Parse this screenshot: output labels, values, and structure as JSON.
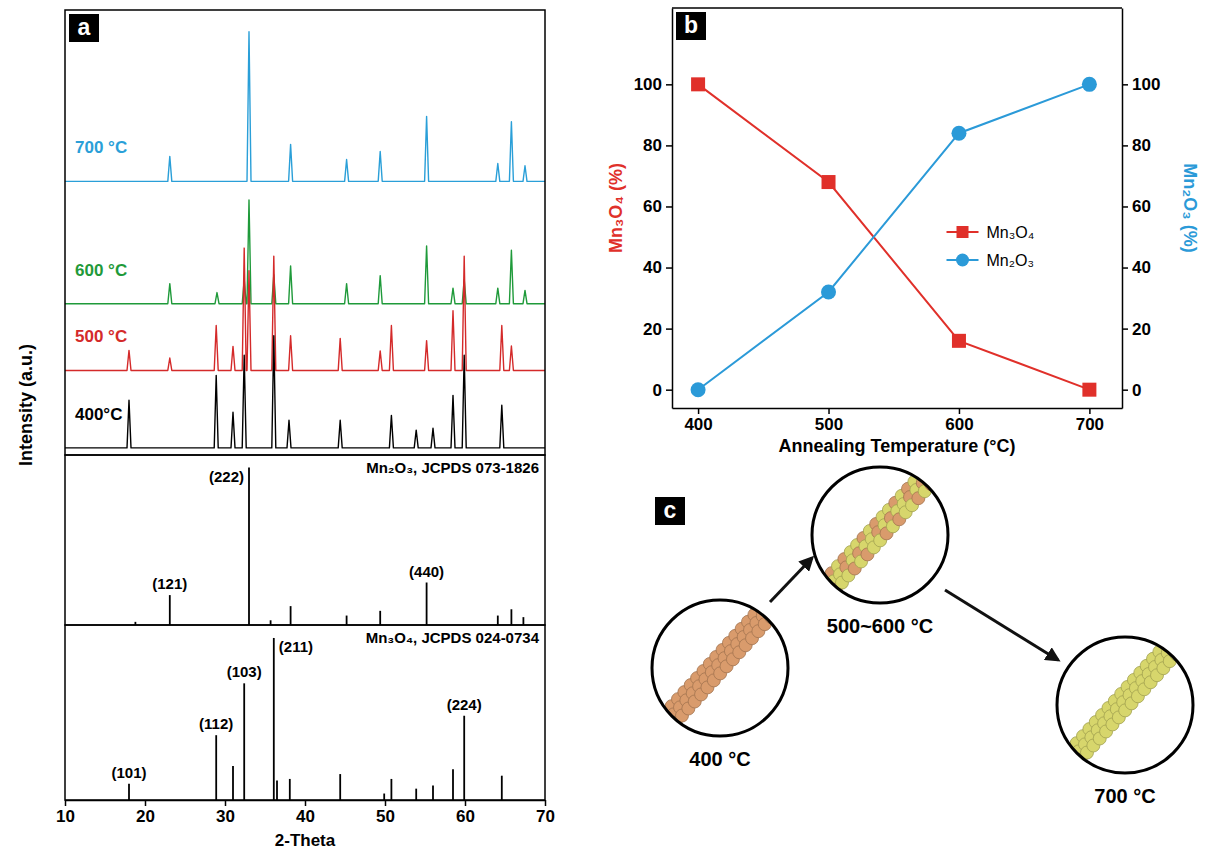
{
  "chart_data": [
    {
      "type": "line",
      "panel": "a",
      "y_label": "Intensity (a.u.)",
      "xlim": [
        10,
        70
      ],
      "ylim": [
        0,
        100
      ],
      "tick_labels": false,
      "series": [
        {
          "name": "700 °C",
          "color": "#2a9fd8",
          "x": [
            10,
            22.85,
            23.1,
            23.35,
            32.75,
            33,
            33.25,
            37.95,
            38.2,
            38.45,
            44.95,
            45.2,
            45.45,
            49.15,
            49.4,
            49.65,
            54.95,
            55.2,
            55.45,
            63.85,
            64.1,
            64.35,
            65.55,
            65.8,
            66.05,
            67.25,
            67.5,
            67.75,
            70
          ],
          "values": [
            61.5,
            61.5,
            67.1,
            61.5,
            61.5,
            95.1,
            61.5,
            61.5,
            69.8,
            61.5,
            61.5,
            66.4,
            61.5,
            61.5,
            68.2,
            61.5,
            61.5,
            76.1,
            61.5,
            61.5,
            65.5,
            61.5,
            61.5,
            74.9,
            61.5,
            61.5,
            65,
            61.5,
            61.5
          ]
        },
        {
          "name": "600 °C",
          "color": "#1f9a3a",
          "x": [
            10,
            22.85,
            23.1,
            23.35,
            28.75,
            29,
            29.25,
            32.15,
            32.4,
            32.65,
            32.75,
            33,
            33.25,
            35.85,
            36.1,
            36.35,
            37.95,
            38.2,
            38.45,
            44.95,
            45.2,
            45.45,
            49.15,
            49.4,
            49.65,
            54.95,
            55.2,
            55.45,
            58.25,
            58.5,
            58.75,
            59.65,
            59.9,
            60.15,
            63.85,
            64.1,
            64.35,
            65.55,
            65.8,
            66.05,
            67.25,
            67.5,
            67.75,
            70
          ],
          "values": [
            34,
            34,
            38.5,
            34,
            34,
            36.5,
            34,
            34,
            39.4,
            34,
            34,
            57.3,
            34,
            34,
            40.5,
            34,
            34,
            42.5,
            34,
            34,
            38.5,
            34,
            34,
            40.3,
            34,
            34,
            47,
            34,
            34,
            37.5,
            34,
            34,
            39.4,
            34,
            34,
            37.5,
            34,
            34,
            46,
            34,
            34,
            37,
            34,
            34
          ]
        },
        {
          "name": "500 °C",
          "color": "#d42a2a",
          "x": [
            10,
            17.75,
            18,
            18.25,
            22.85,
            23.1,
            23.35,
            28.65,
            28.9,
            29.15,
            30.75,
            31,
            31.25,
            32.15,
            32.4,
            32.65,
            32.75,
            33,
            33.25,
            35.85,
            36.1,
            36.35,
            37.95,
            38.2,
            38.45,
            44.15,
            44.4,
            44.65,
            49.15,
            49.4,
            49.65,
            50.55,
            50.8,
            51.05,
            54.95,
            55.2,
            55.45,
            58.25,
            58.5,
            58.75,
            59.65,
            59.9,
            60.15,
            64.35,
            64.6,
            64.85,
            65.55,
            65.8,
            66.05,
            70
          ],
          "values": [
            19,
            19,
            23.5,
            19,
            19,
            21.8,
            19,
            19,
            29.1,
            19,
            19,
            24.4,
            19,
            19,
            46.5,
            19,
            19,
            41.4,
            19,
            19,
            44.7,
            19,
            19,
            26.8,
            19,
            19,
            26.2,
            19,
            19,
            23.4,
            19,
            19,
            29.1,
            19,
            19,
            25.7,
            19,
            19,
            32.4,
            19,
            19,
            44.7,
            19,
            19,
            29.1,
            19,
            19,
            24.5,
            19,
            19
          ]
        },
        {
          "name": "400°C",
          "color": "#000000",
          "x": [
            10,
            17.75,
            18,
            18.25,
            28.65,
            28.9,
            29.15,
            30.75,
            31,
            31.25,
            32.15,
            32.4,
            32.65,
            35.85,
            36.1,
            36.35,
            37.75,
            38,
            38.25,
            44.15,
            44.4,
            44.65,
            50.55,
            50.8,
            51.05,
            53.65,
            53.9,
            54.15,
            55.75,
            56,
            56.25,
            58.25,
            58.5,
            58.75,
            59.65,
            59.9,
            60.15,
            64.35,
            64.6,
            64.85,
            70
          ],
          "values": [
            1.6,
            1.6,
            12.3,
            1.6,
            1.6,
            17.9,
            1.6,
            1.6,
            9.6,
            1.6,
            1.6,
            22.4,
            1.6,
            1.6,
            26.8,
            1.6,
            1.6,
            7.8,
            1.6,
            1.6,
            7.8,
            1.6,
            1.6,
            8.9,
            1.6,
            1.6,
            5.6,
            1.6,
            1.6,
            6,
            1.6,
            1.6,
            13.4,
            1.6,
            1.6,
            22.4,
            1.6,
            1.6,
            11.2,
            1.6,
            1.6
          ]
        }
      ]
    },
    {
      "type": "stick",
      "title": "Mn₂O₃, JCPDS 073-1826",
      "xlim": [
        10,
        70
      ],
      "ylim": [
        0,
        108
      ],
      "tick_labels": false,
      "color": "#000000",
      "x": [
        18.8,
        23.1,
        33.0,
        35.7,
        38.2,
        45.2,
        49.4,
        55.2,
        64.1,
        65.8,
        67.3
      ],
      "values": [
        2,
        19,
        100,
        3,
        12,
        6,
        9,
        27,
        6,
        10,
        5
      ],
      "peak_labels": [
        null,
        "(121)",
        "(222)",
        null,
        null,
        null,
        null,
        "(440)",
        null,
        null,
        null
      ]
    },
    {
      "type": "stick",
      "title": "Mn₃O₄, JCPDS 024-0734",
      "x_label": "2-Theta",
      "xlim": [
        10,
        70
      ],
      "xticks": [
        10,
        20,
        30,
        40,
        50,
        60,
        70
      ],
      "ylim": [
        0,
        108
      ],
      "tick_labels": "x",
      "color": "#000000",
      "x": [
        18.0,
        28.9,
        31.0,
        32.4,
        36.1,
        36.5,
        38.1,
        44.4,
        49.9,
        50.8,
        53.9,
        56.0,
        58.5,
        59.9,
        64.6
      ],
      "values": [
        10,
        40,
        21,
        72,
        100,
        12,
        13,
        16,
        4,
        13,
        7,
        9,
        19,
        52,
        15
      ],
      "peak_labels": [
        "(101)",
        "(112)",
        null,
        "(103)",
        "(211)",
        null,
        null,
        null,
        null,
        null,
        null,
        null,
        null,
        "(224)",
        null
      ]
    },
    {
      "type": "line",
      "panel": "b",
      "x_label": "Annealing Temperature (°C)",
      "y_label": "Mn₃O₄ (%)",
      "y2_label": "Mn₂O₃ (%)",
      "xlim": [
        380,
        725
      ],
      "xticks": [
        400,
        500,
        600,
        700
      ],
      "ylim": [
        -6,
        125
      ],
      "yticks": [
        0,
        20,
        40,
        60,
        80,
        100
      ],
      "y2lim": [
        -6,
        125
      ],
      "y2ticks": [
        0,
        20,
        40,
        60,
        80,
        100
      ],
      "legend": "right",
      "x": [
        400,
        500,
        600,
        700
      ],
      "series": [
        {
          "name": "Mn₃O₄",
          "color": "#e0302a",
          "marker": "square",
          "values": [
            100,
            68,
            16,
            0
          ]
        },
        {
          "name": "Mn₂O₃",
          "color": "#2b9ad8",
          "marker": "circle",
          "axis": "y2",
          "values": [
            0,
            32,
            84,
            100
          ]
        }
      ]
    },
    {
      "type": "diagram",
      "panel": "c",
      "stages": [
        "400 °C",
        "500~600 °C",
        "700 °C"
      ]
    }
  ]
}
